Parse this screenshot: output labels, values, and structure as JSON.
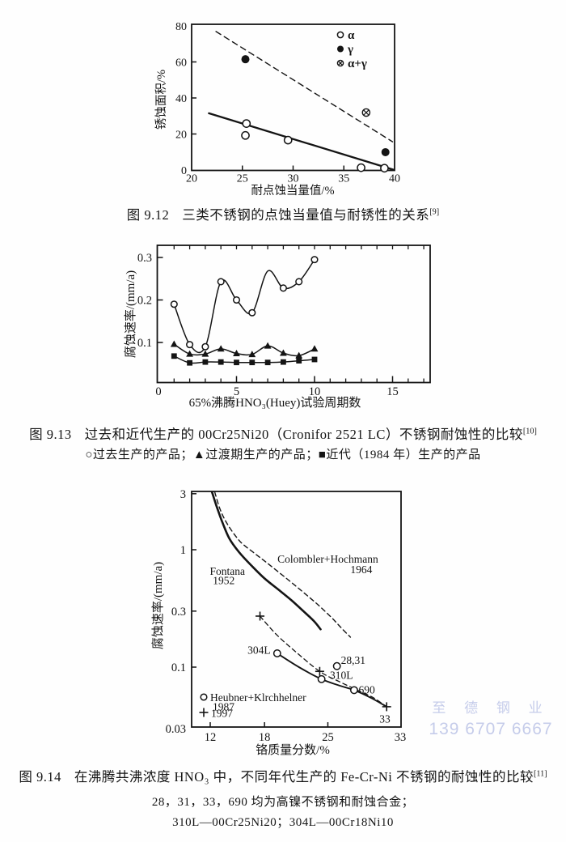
{
  "watermark": {
    "line1": "至 德 钢 业",
    "line2": "139 6707 6667",
    "color": "#c3cae9"
  },
  "figures": [
    {
      "caption_prefix": "图 9.12",
      "caption_text": "三类不锈钢的点蚀当量值与耐锈性的关系",
      "caption_ref": "[9]"
    },
    {
      "caption_prefix": "图 9.13",
      "caption_text": "过去和近代生产的 00Cr25Ni20（Cronifor 2521 LC）不锈钢耐蚀性的比较",
      "caption_ref": "[10]",
      "caption_sub": "○过去生产的产品；▲过渡期生产的产品；■近代（1984 年）生产的产品"
    },
    {
      "caption_prefix": "图 9.14",
      "caption_text": "在沸腾共沸浓度 HNO₃ 中，不同年代生产的 Fe-Cr-Ni 不锈钢的耐蚀性的比较",
      "caption_ref": "[11]",
      "caption_sub": "28，31，33，690 均为高镍不锈钢和耐蚀合金；",
      "caption_sub2": "310L—00Cr25Ni20；304L—00Cr18Ni10"
    }
  ],
  "chart_data": [
    {
      "type": "scatter",
      "xlabel": "耐点蚀当量值/%",
      "ylabel": "锈蚀面积/%",
      "xlim": [
        20,
        40
      ],
      "ylim": [
        0,
        80
      ],
      "grid": false,
      "legend_position": "upper-right-inside",
      "xticks": [
        [
          20,
          "20"
        ],
        [
          25,
          "25"
        ],
        [
          30,
          "30"
        ],
        [
          35,
          "35"
        ],
        [
          40,
          "40"
        ]
      ],
      "yticks": [
        [
          0,
          "0"
        ],
        [
          20,
          "20"
        ],
        [
          40,
          "40"
        ],
        [
          60,
          "60"
        ],
        [
          80,
          "80"
        ]
      ],
      "series": [
        {
          "name": "α",
          "marker": "circle-open",
          "points": [
            [
              25.4,
              25.8
            ],
            [
              25.3,
              19.2
            ],
            [
              29.5,
              16.6
            ],
            [
              36.7,
              1.3
            ],
            [
              39.0,
              1.0
            ]
          ]
        },
        {
          "name": "γ",
          "marker": "circle-filled",
          "points": [
            [
              25.3,
              61.5
            ],
            [
              39.1,
              9.9
            ]
          ]
        },
        {
          "name": "α+γ",
          "marker": "circle-cross",
          "points": [
            [
              37.2,
              31.9
            ]
          ]
        }
      ],
      "trend_lines": [
        {
          "style": "solid",
          "points": [
            [
              21.7,
              31.5
            ],
            [
              39.9,
              0.2
            ]
          ]
        },
        {
          "style": "dashed",
          "points": [
            [
              22.4,
              76.9
            ],
            [
              39.8,
              15.7
            ]
          ]
        }
      ],
      "legend": [
        {
          "marker": "circle-open",
          "label": "α"
        },
        {
          "marker": "circle-filled",
          "label": "γ"
        },
        {
          "marker": "circle-cross",
          "label": "α+γ"
        }
      ]
    },
    {
      "type": "line",
      "xlabel": "65%沸腾HNO₃(Huey)试验周期数",
      "ylabel": "腐蚀速率/(mm/a)",
      "xlim": [
        0,
        17.5
      ],
      "ylim": [
        0.006,
        0.329
      ],
      "yscale": "linear",
      "grid": false,
      "xticks": [
        [
          0,
          "0"
        ],
        [
          5,
          "5"
        ],
        [
          10,
          "10"
        ],
        [
          15,
          "15"
        ]
      ],
      "xticks_minor": [
        1,
        2,
        3,
        4,
        6,
        7,
        8,
        9,
        11,
        12,
        13,
        14,
        16,
        17
      ],
      "yticks": [
        [
          0.1,
          "0.1"
        ],
        [
          0.2,
          "0.2"
        ],
        [
          0.3,
          "0.3"
        ]
      ],
      "series": [
        {
          "name": "过去生产的产品",
          "marker": "circle-open",
          "smooth": true,
          "no_marker": [
            6
          ],
          "points": [
            [
              1,
              0.19
            ],
            [
              2,
              0.095
            ],
            [
              3,
              0.09
            ],
            [
              4,
              0.243
            ],
            [
              5,
              0.2
            ],
            [
              6,
              0.17
            ],
            [
              7,
              0.268
            ],
            [
              8,
              0.228
            ],
            [
              9,
              0.243
            ],
            [
              10,
              0.295
            ]
          ]
        },
        {
          "name": "过渡期生产的产品",
          "marker": "triangle-filled",
          "smooth": true,
          "points": [
            [
              1,
              0.096
            ],
            [
              2,
              0.073
            ],
            [
              3,
              0.073
            ],
            [
              4,
              0.085
            ],
            [
              5,
              0.074
            ],
            [
              6,
              0.072
            ],
            [
              7,
              0.092
            ],
            [
              8,
              0.075
            ],
            [
              9,
              0.069
            ],
            [
              10,
              0.085
            ]
          ]
        },
        {
          "name": "近代（1984 年）生产的产品",
          "marker": "square-filled",
          "smooth": true,
          "points": [
            [
              1,
              0.068
            ],
            [
              2,
              0.052
            ],
            [
              3,
              0.054
            ],
            [
              4,
              0.054
            ],
            [
              5,
              0.053
            ],
            [
              6,
              0.053
            ],
            [
              7,
              0.053
            ],
            [
              8,
              0.054
            ],
            [
              9,
              0.057
            ],
            [
              10,
              0.06
            ]
          ]
        }
      ]
    },
    {
      "type": "line",
      "xlabel": "铬质量分数/%",
      "ylabel": "腐蚀速率/(mm/a)",
      "xlim": [
        10,
        32.6
      ],
      "ylim": [
        0.03,
        3.1
      ],
      "yscale": "log",
      "grid": false,
      "xticks": [
        [
          12,
          "12"
        ],
        [
          18,
          "18"
        ],
        [
          25,
          "25"
        ],
        [
          33,
          "33"
        ]
      ],
      "yticks": [
        [
          3,
          "3"
        ],
        [
          1,
          "1"
        ],
        [
          0.3,
          "0.3"
        ],
        [
          0.1,
          "0.1"
        ],
        [
          0.03,
          "0.03"
        ]
      ],
      "curves": [
        {
          "name": "Fontana 1952",
          "style": "solid",
          "width": 2.6,
          "smooth": true,
          "points": [
            [
              12.2,
              3.1
            ],
            [
              12.7,
              2.35
            ],
            [
              13.3,
              1.75
            ],
            [
              14.1,
              1.25
            ],
            [
              15.2,
              0.95
            ],
            [
              16.5,
              0.74
            ],
            [
              18.0,
              0.57
            ],
            [
              19.5,
              0.46
            ],
            [
              21.0,
              0.37
            ],
            [
              22.5,
              0.29
            ],
            [
              23.5,
              0.245
            ],
            [
              24.2,
              0.21
            ]
          ]
        },
        {
          "name": "Colombler+Hochmann 1964",
          "style": "dashed",
          "width": 1.4,
          "smooth": true,
          "points": [
            [
              12.5,
              3.1
            ],
            [
              13.1,
              2.2
            ],
            [
              13.9,
              1.65
            ],
            [
              15.0,
              1.25
            ],
            [
              15.7,
              1.1
            ],
            [
              17.0,
              0.92
            ],
            [
              18.2,
              0.78
            ],
            [
              20.3,
              0.58
            ],
            [
              22.2,
              0.44
            ],
            [
              24.0,
              0.335
            ],
            [
              25.5,
              0.26
            ],
            [
              26.5,
              0.215
            ],
            [
              27.5,
              0.18
            ]
          ]
        },
        {
          "name": "Heubner+Klrchhelner 1987",
          "style": "solid",
          "width": 1.9,
          "smooth": true,
          "points": [
            [
              19.4,
              0.131
            ],
            [
              21.8,
              0.1
            ],
            [
              24.3,
              0.079
            ],
            [
              26.2,
              0.07
            ],
            [
              27.9,
              0.0637
            ],
            [
              29.8,
              0.0545
            ],
            [
              31.5,
              0.046
            ]
          ]
        },
        {
          "name": "1997",
          "style": "dashed",
          "width": 1.3,
          "smooth": true,
          "points": [
            [
              17.5,
              0.272
            ],
            [
              19.3,
              0.19
            ],
            [
              21.3,
              0.138
            ],
            [
              24.1,
              0.092
            ],
            [
              26.3,
              0.075
            ],
            [
              28.3,
              0.0635
            ],
            [
              30.0,
              0.055
            ],
            [
              31.5,
              0.046
            ]
          ]
        }
      ],
      "scatter": [
        {
          "name": "Heubner+Klrchhelner 1987",
          "marker": "circle-open",
          "points": [
            [
              19.4,
              0.131
            ],
            [
              24.3,
              0.079
            ],
            [
              27.9,
              0.0637
            ],
            [
              26.0,
              0.102
            ]
          ]
        },
        {
          "name": "1997",
          "marker": "plus",
          "points": [
            [
              17.5,
              0.272
            ],
            [
              24.1,
              0.092
            ],
            [
              31.5,
              0.046
            ]
          ]
        }
      ],
      "annotations": [
        {
          "text": "Colombler+Hochmann",
          "x": 25.0,
          "y": 0.83,
          "anchor": "middle"
        },
        {
          "text": "1964",
          "x": 28.7,
          "y": 0.68,
          "anchor": "middle"
        },
        {
          "text": "Fontana",
          "x": 13.9,
          "y": 0.655,
          "anchor": "middle"
        },
        {
          "text": "1952",
          "x": 13.5,
          "y": 0.545,
          "anchor": "middle"
        },
        {
          "text": "304L",
          "x": 17.4,
          "y": 0.14,
          "anchor": "middle"
        },
        {
          "text": "28,31",
          "x": 27.8,
          "y": 0.114,
          "anchor": "middle"
        },
        {
          "text": "310L",
          "x": 26.5,
          "y": 0.0855,
          "anchor": "middle"
        },
        {
          "text": "690",
          "x": 29.3,
          "y": 0.064,
          "anchor": "middle"
        },
        {
          "text": "33",
          "x": 31.3,
          "y": 0.0362,
          "anchor": "middle"
        }
      ],
      "legend": [
        {
          "marker": "circle-open",
          "label": "Heubner+Klrchhelner"
        },
        {
          "marker": "",
          "label": "1987"
        },
        {
          "marker": "plus",
          "label": "1997"
        }
      ]
    }
  ]
}
